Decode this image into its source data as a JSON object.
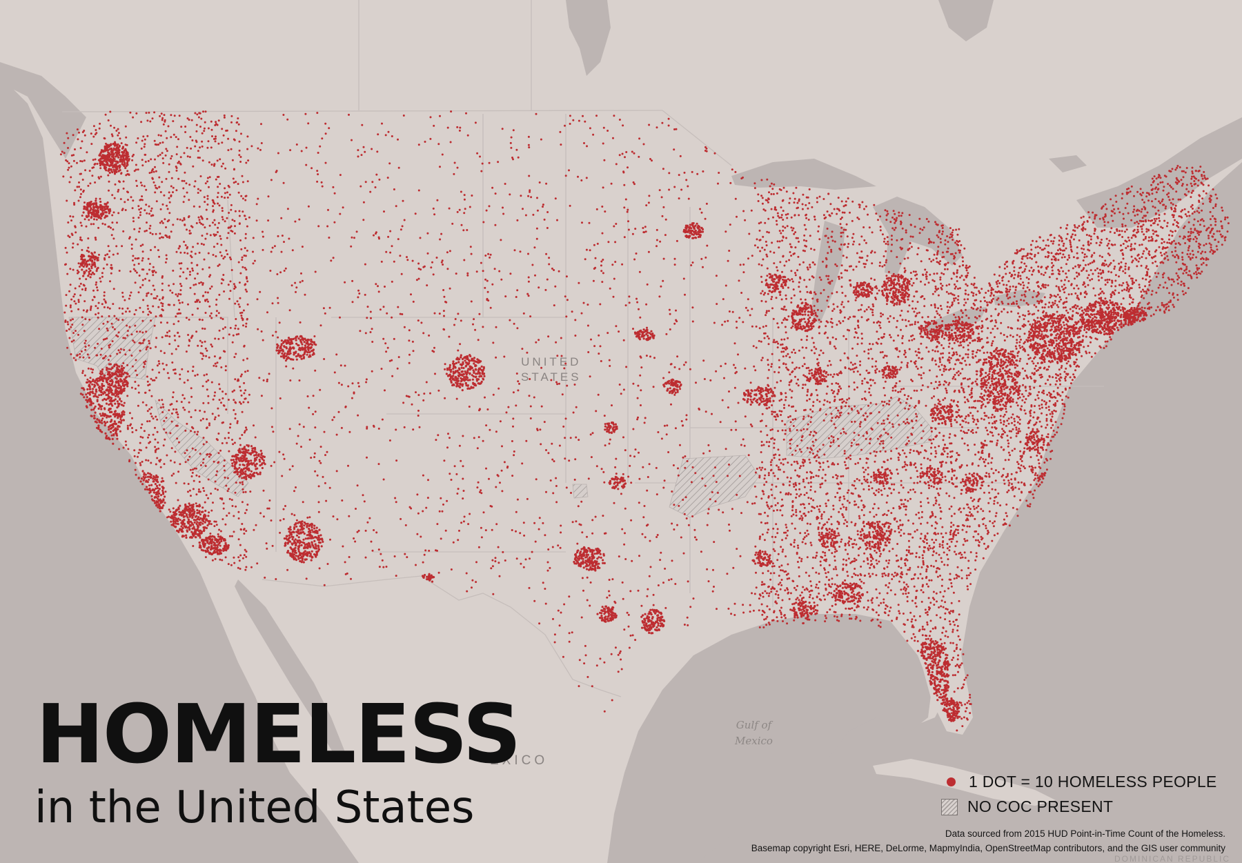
{
  "map": {
    "title": "HOMELESS",
    "subtitle": "in the United States",
    "labels": {
      "country_line1": "UNITED",
      "country_line2": "STATES",
      "mexico": "ÉXICO",
      "gulf_line1": "Gulf of",
      "gulf_line2": "Mexico",
      "dominican": "DOMINICAN REPUBLIC"
    },
    "legend": {
      "dot_label": "1 DOT = 10 HOMELESS PEOPLE",
      "hatch_label": "NO COC PRESENT",
      "dot_value": 10
    },
    "credits": {
      "line1": "Data sourced from 2015 HUD Point-in-Time Count of the Homeless.",
      "line2": "Basemap copyright Esri, HERE, DeLorme, MapmyIndia, OpenStreetMap contributors, and the GIS user community"
    },
    "colors": {
      "dot": "#bd2d31",
      "land": "#d9d1cd",
      "water": "#bdb5b3",
      "border": "#c6bebb",
      "text": "#101010"
    }
  }
}
